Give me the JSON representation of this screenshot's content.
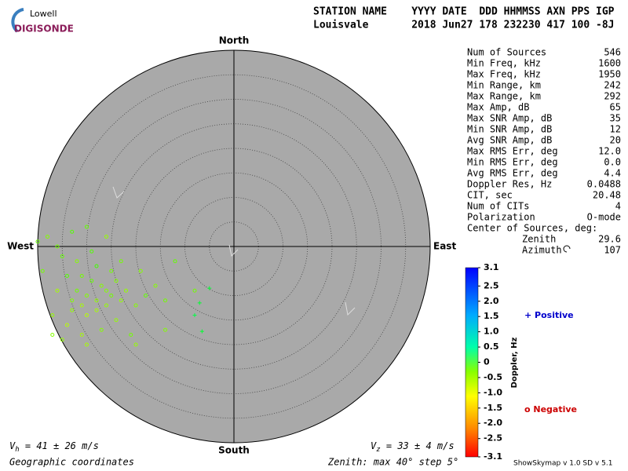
{
  "logo": {
    "line1": "Lowell",
    "line2": "DIGISONDE"
  },
  "header": {
    "labels": "STATION NAME    YYYY DATE  DDD HHMMSS AXN PPS IGP",
    "values": "Louisvale       2018 Jun27 178 232230 417 100 -8J"
  },
  "compass": {
    "north": "North",
    "south": "South",
    "east": "East",
    "west": "West"
  },
  "stats": [
    [
      "Num of Sources",
      "546"
    ],
    [
      "Min Freq, kHz",
      "1600"
    ],
    [
      "Max Freq, kHz",
      "1950"
    ],
    [
      "Min Range, km",
      "242"
    ],
    [
      "Max Range, km",
      "292"
    ],
    [
      "Max Amp, dB",
      "65"
    ],
    [
      "Max SNR Amp, dB",
      "35"
    ],
    [
      "Min SNR Amp, dB",
      "12"
    ],
    [
      "Avg SNR Amp, dB",
      "20"
    ],
    [
      "Max RMS Err, deg",
      "12.0"
    ],
    [
      "Min RMS Err, deg",
      "0.0"
    ],
    [
      "Avg RMS Err, deg",
      "4.4"
    ],
    [
      "Doppler Res, Hz",
      "0.0488"
    ],
    [
      "CIT, sec",
      "20.48"
    ],
    [
      "Num of CITs",
      "4"
    ],
    [
      "Polarization",
      "O-mode"
    ]
  ],
  "center": {
    "title": "Center of Sources, deg:",
    "zenith_label": "Zenith",
    "zenith_value": "29.6",
    "azimuth_label": "Azimuth",
    "azimuth_value": "107"
  },
  "colorbar": {
    "title": "Doppler, Hz",
    "range": [
      -3.1,
      3.1
    ],
    "ticks": [
      {
        "value": 3.1,
        "label": "3.1"
      },
      {
        "value": 2.5,
        "label": "2.5"
      },
      {
        "value": 2,
        "label": "2.0"
      },
      {
        "value": 1.5,
        "label": "1.5"
      },
      {
        "value": 1,
        "label": "1.0"
      },
      {
        "value": 0.5,
        "label": "0.5"
      },
      0,
      {
        "value": -0.5,
        "label": "-0.5"
      },
      {
        "value": -1,
        "label": "-1.0"
      },
      {
        "value": -1.5,
        "label": "-1.5"
      },
      {
        "value": -2,
        "label": "-2.0"
      },
      {
        "value": -2.5,
        "label": "-2.5"
      },
      {
        "value": -3.1,
        "label": "-3.1"
      }
    ]
  },
  "legend": {
    "positive": "+ Positive",
    "negative": "o Negative"
  },
  "footer": {
    "vh_v": "V",
    "vh_sub": "h",
    "vh_rest": " = 41 ± 26 m/s",
    "vz_v": "V",
    "vz_sub": "z",
    "vz_rest": " = 33 ± 4 m/s",
    "coords": "Geographic coordinates",
    "zenith": "Zenith: max 40°  step 5°",
    "version": "ShowSkymap v 1.0  SD v 5.1"
  },
  "rings": {
    "max": 40,
    "step": 5
  },
  "sources": [
    {
      "e": -30,
      "n": -10,
      "d": -0.8
    },
    {
      "e": -28,
      "n": -11,
      "d": -0.9
    },
    {
      "e": -32,
      "n": -9,
      "d": -0.7
    },
    {
      "e": -27,
      "n": -8,
      "d": -0.8
    },
    {
      "e": -31,
      "n": -12,
      "d": -1.0
    },
    {
      "e": -29,
      "n": -7,
      "d": -0.6
    },
    {
      "e": -26,
      "n": -12,
      "d": -0.9
    },
    {
      "e": -33,
      "n": -11,
      "d": -0.8
    },
    {
      "e": -25,
      "n": -10,
      "d": -0.7
    },
    {
      "e": -30,
      "n": -14,
      "d": -1.1
    },
    {
      "e": -34,
      "n": -6,
      "d": -0.5
    },
    {
      "e": -28,
      "n": -4,
      "d": -0.4
    },
    {
      "e": -24,
      "n": -7,
      "d": -0.8
    },
    {
      "e": -22,
      "n": -9,
      "d": -0.9
    },
    {
      "e": -20,
      "n": -12,
      "d": -0.8
    },
    {
      "e": -35,
      "n": -2,
      "d": -0.6
    },
    {
      "e": -36,
      "n": 0,
      "d": -0.7
    },
    {
      "e": -38,
      "n": 2,
      "d": -0.8
    },
    {
      "e": -33,
      "n": 3,
      "d": -0.5
    },
    {
      "e": -30,
      "n": 4,
      "d": -0.6
    },
    {
      "e": -26,
      "n": 2,
      "d": -0.9
    },
    {
      "e": -23,
      "n": -3,
      "d": -0.7
    },
    {
      "e": -19,
      "n": -5,
      "d": -0.8
    },
    {
      "e": -36,
      "n": -9,
      "d": -1.0
    },
    {
      "e": -37,
      "n": -14,
      "d": -0.9
    },
    {
      "e": -34,
      "n": -16,
      "d": -1.1
    },
    {
      "e": -31,
      "n": -18,
      "d": -1.0
    },
    {
      "e": -27,
      "n": -17,
      "d": -0.8
    },
    {
      "e": -24,
      "n": -15,
      "d": -0.9
    },
    {
      "e": -21,
      "n": -18,
      "d": -0.7
    },
    {
      "e": -18,
      "n": -10,
      "d": -0.6
    },
    {
      "e": -16,
      "n": -8,
      "d": -0.8
    },
    {
      "e": -14,
      "n": -11,
      "d": -0.7
    },
    {
      "e": -30,
      "n": -20,
      "d": -1.0
    },
    {
      "e": -35,
      "n": -19,
      "d": -0.9
    },
    {
      "e": -37,
      "n": -18,
      "d": -0.8
    },
    {
      "e": -39,
      "n": -5,
      "d": -0.7
    },
    {
      "e": -40,
      "n": 1,
      "d": -0.6
    },
    {
      "e": -32,
      "n": -3,
      "d": -0.8
    },
    {
      "e": -29,
      "n": -1,
      "d": -0.5
    },
    {
      "e": -25,
      "n": -5,
      "d": -0.7
    },
    {
      "e": -28,
      "n": -13,
      "d": -1.0
    },
    {
      "e": -33,
      "n": -13,
      "d": -0.9
    },
    {
      "e": -26,
      "n": -9,
      "d": -0.8
    },
    {
      "e": -31,
      "n": -6,
      "d": -0.7
    },
    {
      "e": -23,
      "n": -11,
      "d": -0.9
    },
    {
      "e": -12,
      "n": -3,
      "d": -0.6
    },
    {
      "e": -8,
      "n": -9,
      "d": -0.7
    },
    {
      "e": -14,
      "n": -17,
      "d": -0.8
    },
    {
      "e": -20,
      "n": -20,
      "d": -0.9
    },
    {
      "e": -5,
      "n": -8.5,
      "d": 0.3
    },
    {
      "e": -7,
      "n": -11.5,
      "d": 0.3
    },
    {
      "e": -8,
      "n": -14,
      "d": 0.4
    },
    {
      "e": -6.5,
      "n": -17.3,
      "d": 0.3
    }
  ]
}
